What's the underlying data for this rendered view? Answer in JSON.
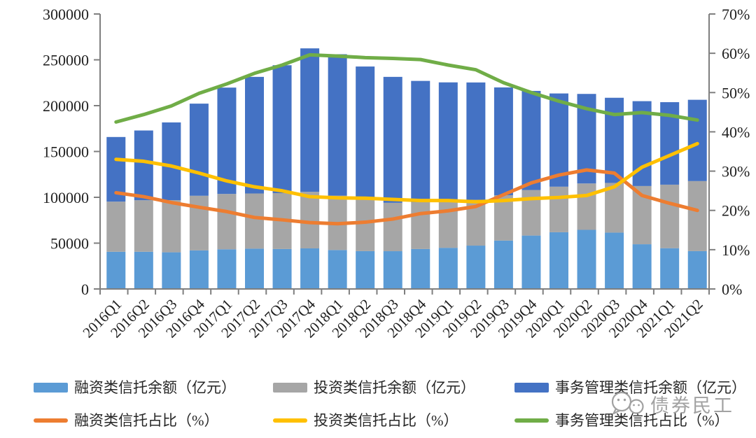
{
  "watermark": {
    "text": "债券民工",
    "icon": "chat-bubbles-icon"
  },
  "chart_data": {
    "type": "bar",
    "subtype": "stacked-bar-with-lines",
    "title": "",
    "background": "#ffffff",
    "grid": false,
    "stacked": true,
    "legend_position": "bottom",
    "categories": [
      "2016Q1",
      "2016Q2",
      "2016Q3",
      "2016Q4",
      "2017Q1",
      "2017Q2",
      "2017Q3",
      "2017Q4",
      "2018Q1",
      "2018Q2",
      "2018Q3",
      "2018Q4",
      "2019Q1",
      "2019Q2",
      "2019Q3",
      "2019Q4",
      "2020Q1",
      "2020Q2",
      "2020Q3",
      "2020Q4",
      "2021Q1",
      "2021Q2"
    ],
    "bar_series": [
      {
        "key": "financing-balance",
        "name": "融资类信托余额（亿元）",
        "color": "#5B9BD5",
        "axis": "left",
        "values": [
          40600,
          40600,
          40000,
          42100,
          43300,
          44000,
          43600,
          44300,
          42500,
          41300,
          41200,
          43600,
          44900,
          47300,
          52800,
          58300,
          61900,
          64500,
          61500,
          48800,
          44500,
          41300
        ]
      },
      {
        "key": "investment-balance",
        "name": "投资类信托余额（亿元）",
        "color": "#A6A6A6",
        "axis": "left",
        "values": [
          54700,
          56200,
          56900,
          59600,
          60400,
          60200,
          61000,
          61700,
          59400,
          56100,
          52800,
          51100,
          50700,
          50000,
          49500,
          49700,
          49700,
          50600,
          54200,
          63500,
          69300,
          76400
        ]
      },
      {
        "key": "admin-balance",
        "name": "事务管理类信托余额（亿元）",
        "color": "#4472C4",
        "axis": "left",
        "values": [
          70500,
          76100,
          84800,
          100500,
          116000,
          127200,
          139500,
          156500,
          154200,
          145300,
          137400,
          132300,
          129800,
          128000,
          117600,
          108100,
          101700,
          97700,
          92900,
          92600,
          90000,
          88700
        ]
      }
    ],
    "line_series": [
      {
        "key": "financing-share",
        "name": "融资类信托占比（%）",
        "color": "#ED7D31",
        "axis": "right",
        "values": [
          24.5,
          23.5,
          22.0,
          20.8,
          19.7,
          18.2,
          17.6,
          16.9,
          16.6,
          17.0,
          17.8,
          19.2,
          19.9,
          21.0,
          24.0,
          27.0,
          29.0,
          30.3,
          29.5,
          23.8,
          21.8,
          20.0
        ]
      },
      {
        "key": "investment-share",
        "name": "投资类信托占比（%）",
        "color": "#FFC000",
        "axis": "right",
        "values": [
          33.0,
          32.5,
          31.3,
          29.5,
          27.5,
          26.0,
          25.0,
          23.5,
          23.2,
          23.1,
          22.8,
          22.5,
          22.5,
          22.2,
          22.5,
          23.0,
          23.3,
          23.8,
          26.0,
          31.0,
          34.0,
          37.0
        ]
      },
      {
        "key": "admin-share",
        "name": "事务管理类信托占比（%）",
        "color": "#70AD47",
        "axis": "right",
        "values": [
          42.5,
          44.4,
          46.6,
          49.8,
          52.2,
          54.9,
          57.0,
          59.6,
          59.3,
          58.9,
          58.7,
          58.4,
          57.0,
          55.8,
          52.5,
          50.0,
          47.8,
          45.9,
          44.4,
          44.9,
          44.2,
          43.0
        ]
      }
    ],
    "left_axis": {
      "min": 0,
      "max": 300000,
      "step": 50000,
      "labels": [
        "0",
        "50000",
        "100000",
        "150000",
        "200000",
        "250000",
        "300000"
      ]
    },
    "right_axis": {
      "min": 0,
      "max": 70,
      "step": 10,
      "labels": [
        "0%",
        "10%",
        "20%",
        "30%",
        "40%",
        "50%",
        "60%",
        "70%"
      ]
    },
    "x_axis": {
      "labels_rotation": -45
    }
  }
}
